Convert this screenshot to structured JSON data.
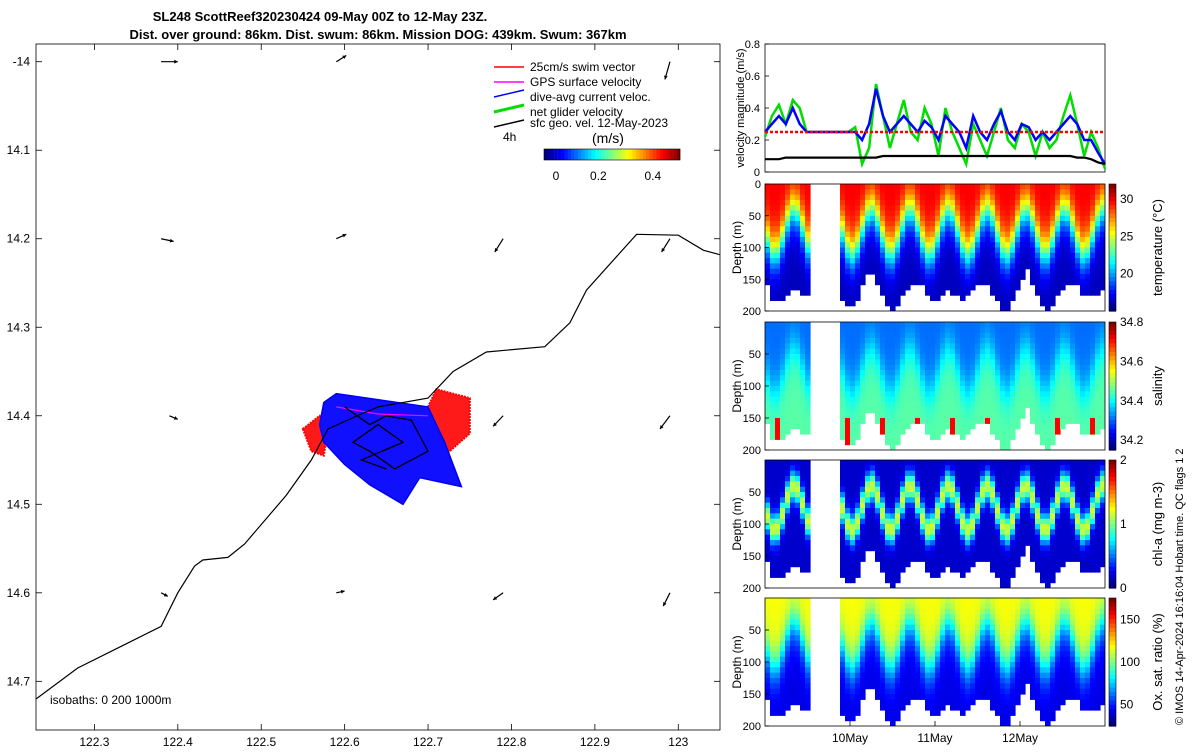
{
  "header": {
    "title_line1": "SL248 ScottReef320230424 09-May 00Z to 12-May 23Z.",
    "title_line2": "Dist. over ground: 86km. Dist. swum: 86km. Mission DOG: 439km. Swum: 367km"
  },
  "credit": "© IMOS 14-Apr-2024 16:16:04 Hobart time. QC flags 1  2",
  "chart_data": [
    {
      "type": "scatter",
      "panel": "map",
      "xlim": [
        122.23,
        123.05
      ],
      "ylim": [
        -14.755,
        -13.98
      ],
      "x_ticks": [
        "122.3",
        "122.4",
        "122.5",
        "122.6",
        "122.7",
        "122.8",
        "122.9",
        "123"
      ],
      "y_ticks": [
        "-14",
        "14.1",
        "14.2",
        "14.3",
        "14.4",
        "14.5",
        "14.6",
        "14.7"
      ],
      "legend": [
        {
          "label": "25cm/s swim vector",
          "color": "#ff0000"
        },
        {
          "label": "GPS surface velocity",
          "color": "#ff00ff"
        },
        {
          "label": "dive-avg current veloc.",
          "color": "#0000ff"
        },
        {
          "label": "net glider velocity",
          "color": "#00dd00"
        },
        {
          "label": "sfc geo. vel. 12-May-2023",
          "color": "#000000"
        }
      ],
      "legend_scale_label": "4h",
      "colorbar": {
        "label": "(m/s)",
        "ticks": [
          "0",
          "0.2",
          "0.4"
        ],
        "range": [
          0,
          0.5
        ]
      },
      "isobath_label": "isobaths: 0   200  1000m",
      "isobath": [
        [
          122.23,
          -14.72
        ],
        [
          122.28,
          -14.685
        ],
        [
          122.38,
          -14.638
        ],
        [
          122.4,
          -14.6
        ],
        [
          122.42,
          -14.57
        ],
        [
          122.43,
          -14.563
        ],
        [
          122.46,
          -14.56
        ],
        [
          122.48,
          -14.545
        ],
        [
          122.53,
          -14.49
        ],
        [
          122.56,
          -14.45
        ],
        [
          122.58,
          -14.415
        ],
        [
          122.62,
          -14.398
        ],
        [
          122.64,
          -14.39
        ],
        [
          122.7,
          -14.38
        ],
        [
          122.73,
          -14.35
        ],
        [
          122.77,
          -14.328
        ],
        [
          122.84,
          -14.322
        ],
        [
          122.87,
          -14.295
        ],
        [
          122.89,
          -14.258
        ],
        [
          122.95,
          -14.195
        ],
        [
          123.0,
          -14.196
        ],
        [
          123.03,
          -14.213
        ],
        [
          123.05,
          -14.218
        ]
      ],
      "vectors": [
        [
          122.38,
          -14.0,
          0.02,
          0.0
        ],
        [
          122.59,
          -14.0,
          0.012,
          0.007
        ],
        [
          122.99,
          -14.0,
          -0.006,
          -0.02
        ],
        [
          122.38,
          -14.2,
          0.015,
          -0.003
        ],
        [
          122.59,
          -14.2,
          0.012,
          0.005
        ],
        [
          122.79,
          -14.2,
          -0.01,
          -0.015
        ],
        [
          122.99,
          -14.2,
          -0.01,
          -0.015
        ],
        [
          122.39,
          -14.4,
          0.01,
          -0.004
        ],
        [
          122.79,
          -14.4,
          -0.012,
          -0.012
        ],
        [
          122.99,
          -14.4,
          -0.012,
          -0.015
        ],
        [
          122.38,
          -14.6,
          0.008,
          -0.004
        ],
        [
          122.59,
          -14.6,
          0.01,
          0.002
        ],
        [
          122.79,
          -14.6,
          -0.012,
          -0.008
        ],
        [
          122.99,
          -14.6,
          -0.008,
          -0.015
        ]
      ],
      "blue_patch": [
        [
          122.575,
          -14.385
        ],
        [
          122.59,
          -14.375
        ],
        [
          122.7,
          -14.39
        ],
        [
          122.72,
          -14.43
        ],
        [
          122.74,
          -14.48
        ],
        [
          122.69,
          -14.47
        ],
        [
          122.67,
          -14.5
        ],
        [
          122.63,
          -14.478
        ],
        [
          122.6,
          -14.455
        ],
        [
          122.575,
          -14.43
        ],
        [
          122.57,
          -14.41
        ]
      ],
      "red_patch_left": [
        [
          122.55,
          -14.415
        ],
        [
          122.57,
          -14.4
        ],
        [
          122.58,
          -14.415
        ],
        [
          122.575,
          -14.445
        ],
        [
          122.56,
          -14.44
        ]
      ],
      "red_patch_right": [
        [
          122.7,
          -14.39
        ],
        [
          122.71,
          -14.37
        ],
        [
          122.75,
          -14.38
        ],
        [
          122.75,
          -14.42
        ],
        [
          122.72,
          -14.445
        ],
        [
          122.7,
          -14.42
        ]
      ],
      "track": [
        [
          122.6,
          -14.39
        ],
        [
          122.63,
          -14.41
        ],
        [
          122.65,
          -14.4
        ],
        [
          122.68,
          -14.405
        ],
        [
          122.7,
          -14.44
        ],
        [
          122.66,
          -14.46
        ],
        [
          122.63,
          -14.44
        ],
        [
          122.61,
          -14.43
        ],
        [
          122.64,
          -14.41
        ],
        [
          122.67,
          -14.43
        ],
        [
          122.62,
          -14.45
        ],
        [
          122.65,
          -14.46
        ]
      ]
    },
    {
      "type": "line",
      "panel": "velocity",
      "ylabel": "velocity magnitude (m/s)",
      "ylim": [
        0,
        0.8
      ],
      "y_ticks": [
        "0",
        "0.2",
        "0.4",
        "0.6",
        "0.8"
      ],
      "x_range_days": [
        0,
        4
      ],
      "series": [
        {
          "color": "#00dd00",
          "values": [
            0.22,
            0.35,
            0.42,
            0.3,
            0.45,
            0.4,
            0.25,
            0.25,
            0.25,
            0.25,
            0.25,
            0.25,
            0.25,
            0.28,
            0.05,
            0.15,
            0.55,
            0.35,
            0.15,
            0.3,
            0.45,
            0.25,
            0.2,
            0.4,
            0.3,
            0.1,
            0.4,
            0.25,
            0.15,
            0.05,
            0.3,
            0.2,
            0.1,
            0.25,
            0.4,
            0.2,
            0.15,
            0.3,
            0.25,
            0.1,
            0.25,
            0.15,
            0.2,
            0.35,
            0.48,
            0.3,
            0.1,
            0.25,
            0.15,
            0.02
          ]
        },
        {
          "color": "#0000ff",
          "values": [
            0.25,
            0.3,
            0.35,
            0.3,
            0.4,
            0.3,
            0.25,
            0.25,
            0.25,
            0.25,
            0.25,
            0.25,
            0.25,
            0.25,
            0.2,
            0.3,
            0.52,
            0.35,
            0.25,
            0.3,
            0.35,
            0.3,
            0.25,
            0.32,
            0.28,
            0.2,
            0.35,
            0.3,
            0.25,
            0.15,
            0.35,
            0.25,
            0.2,
            0.3,
            0.38,
            0.25,
            0.2,
            0.3,
            0.28,
            0.2,
            0.25,
            0.2,
            0.25,
            0.3,
            0.35,
            0.3,
            0.2,
            0.2,
            0.12,
            0.05
          ]
        },
        {
          "color": "#ff0000",
          "values": [
            0.25,
            0.25,
            0.25,
            0.25,
            0.25,
            0.25,
            0.25,
            0.25,
            0.25,
            0.25,
            0.25,
            0.25,
            0.25,
            0.25,
            0.25,
            0.25,
            0.25,
            0.25,
            0.25,
            0.25,
            0.25,
            0.25,
            0.25,
            0.25,
            0.25,
            0.25,
            0.25,
            0.25,
            0.25,
            0.25,
            0.25,
            0.25,
            0.25,
            0.25,
            0.25,
            0.25,
            0.25,
            0.25,
            0.25,
            0.25,
            0.25,
            0.25,
            0.25,
            0.25,
            0.25,
            0.25,
            0.25,
            0.25,
            0.25,
            0.25
          ]
        },
        {
          "color": "#000000",
          "values": [
            0.08,
            0.08,
            0.08,
            0.09,
            0.09,
            0.09,
            0.09,
            0.09,
            0.09,
            0.09,
            0.09,
            0.09,
            0.09,
            0.09,
            0.09,
            0.09,
            0.09,
            0.1,
            0.1,
            0.1,
            0.1,
            0.1,
            0.1,
            0.1,
            0.1,
            0.1,
            0.1,
            0.1,
            0.1,
            0.1,
            0.1,
            0.1,
            0.1,
            0.1,
            0.1,
            0.1,
            0.1,
            0.1,
            0.1,
            0.1,
            0.1,
            0.1,
            0.1,
            0.1,
            0.1,
            0.09,
            0.09,
            0.08,
            0.06,
            0.05
          ]
        }
      ]
    },
    {
      "type": "heatmap",
      "panel": "temperature",
      "ylabel": "Depth (m)",
      "y_ticks": [
        "0",
        "50",
        "100",
        "150",
        "200"
      ],
      "ylim": [
        0,
        200
      ],
      "colorbar_label": "temperature (°C)",
      "colorbar_ticks": [
        "20",
        "25",
        "30"
      ],
      "clim": [
        15,
        32
      ],
      "surface": 30,
      "deep": 16,
      "cycles_per_day": 2.2,
      "gap_days": [
        0.5,
        0.9
      ]
    },
    {
      "type": "heatmap",
      "panel": "salinity",
      "ylabel": "Depth (m)",
      "y_ticks": [
        "50",
        "100",
        "150",
        "200"
      ],
      "ylim": [
        0,
        200
      ],
      "colorbar_label": "salinity",
      "colorbar_ticks": [
        "34.2",
        "34.4",
        "34.6",
        "34.8"
      ],
      "clim": [
        34.15,
        34.8
      ],
      "surface": 34.3,
      "deep": 34.45,
      "cycles_per_day": 2.2,
      "gap_days": [
        0.5,
        0.9
      ]
    },
    {
      "type": "heatmap",
      "panel": "chl-a",
      "ylabel": "Depth (m)",
      "y_ticks": [
        "50",
        "100",
        "150",
        "200"
      ],
      "ylim": [
        0,
        200
      ],
      "colorbar_label": "chl-a (mg m-3)",
      "colorbar_ticks": [
        "0",
        "1",
        "2"
      ],
      "clim": [
        0,
        2
      ],
      "surface": 0.15,
      "deep": 0.1,
      "cycles_per_day": 2.2,
      "gap_days": [
        0.5,
        0.9
      ]
    },
    {
      "type": "heatmap",
      "panel": "oxygen",
      "ylabel": "Depth (m)",
      "y_ticks": [
        "50",
        "100",
        "150",
        "200"
      ],
      "ylim": [
        0,
        200
      ],
      "colorbar_label": "Ox. sat. ratio (%)",
      "colorbar_ticks": [
        "50",
        "100",
        "150"
      ],
      "clim": [
        25,
        175
      ],
      "surface": 118,
      "deep": 40,
      "cycles_per_day": 2.2,
      "gap_days": [
        0.5,
        0.9
      ]
    }
  ],
  "time_axis": {
    "ticks": [
      "10May",
      "11May",
      "12May"
    ],
    "positions_days": [
      1,
      2,
      3
    ]
  }
}
